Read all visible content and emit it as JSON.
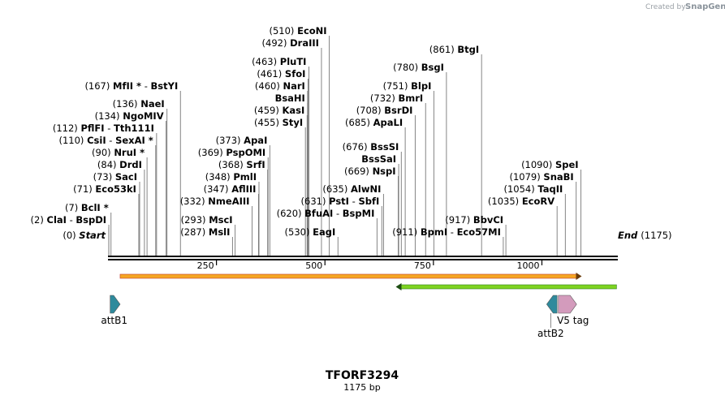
{
  "credit": {
    "prefix": "Created by",
    "brand": "SnapGene"
  },
  "sequence": {
    "name": "TFORF3294",
    "length_label": "1175 bp",
    "length": 1175
  },
  "scale": {
    "ticks": [
      250,
      500,
      750,
      1000
    ]
  },
  "ends": [
    {
      "pos": 0,
      "pos_label": "(0)",
      "name": "Start"
    },
    {
      "pos": 1175,
      "pos_label": "(1175)",
      "name": "End"
    }
  ],
  "sites": [
    {
      "pos": 7,
      "pos_label": "(7)",
      "name": "BclI *"
    },
    {
      "pos": 2,
      "pos_label": "(2)",
      "name": "ClaI",
      "alt": "BspDI"
    },
    {
      "pos": 71,
      "pos_label": "(71)",
      "name": "Eco53kI"
    },
    {
      "pos": 73,
      "pos_label": "(73)",
      "name": "SacI"
    },
    {
      "pos": 84,
      "pos_label": "(84)",
      "name": "DrdI"
    },
    {
      "pos": 90,
      "pos_label": "(90)",
      "name": "NruI *"
    },
    {
      "pos": 110,
      "pos_label": "(110)",
      "name": "CsiI",
      "alt": "SexAI *"
    },
    {
      "pos": 112,
      "pos_label": "(112)",
      "name": "PflFI",
      "alt": "Tth111I"
    },
    {
      "pos": 134,
      "pos_label": "(134)",
      "name": "NgoMIV"
    },
    {
      "pos": 136,
      "pos_label": "(136)",
      "name": "NaeI"
    },
    {
      "pos": 167,
      "pos_label": "(167)",
      "name": "MfII *",
      "alt": "BstYI"
    },
    {
      "pos": 287,
      "pos_label": "(287)",
      "name": "MslI"
    },
    {
      "pos": 293,
      "pos_label": "(293)",
      "name": "MscI"
    },
    {
      "pos": 332,
      "pos_label": "(332)",
      "name": "NmeAIII"
    },
    {
      "pos": 347,
      "pos_label": "(347)",
      "name": "AflIII"
    },
    {
      "pos": 348,
      "pos_label": "(348)",
      "name": "PmlI"
    },
    {
      "pos": 368,
      "pos_label": "(368)",
      "name": "SrfI"
    },
    {
      "pos": 369,
      "pos_label": "(369)",
      "name": "PspOMI"
    },
    {
      "pos": 373,
      "pos_label": "(373)",
      "name": "ApaI"
    },
    {
      "pos": 455,
      "pos_label": "(455)",
      "name": "StyI"
    },
    {
      "pos": 459,
      "pos_label": "(459)",
      "name": "KasI"
    },
    {
      "pos": 460,
      "pos_label": "",
      "name": "BsaHI"
    },
    {
      "pos": 460,
      "pos_label": "(460)",
      "name": "NarI"
    },
    {
      "pos": 461,
      "pos_label": "(461)",
      "name": "SfoI"
    },
    {
      "pos": 463,
      "pos_label": "(463)",
      "name": "PluTI"
    },
    {
      "pos": 492,
      "pos_label": "(492)",
      "name": "DraIII"
    },
    {
      "pos": 510,
      "pos_label": "(510)",
      "name": "EcoNI"
    },
    {
      "pos": 530,
      "pos_label": "(530)",
      "name": "EagI"
    },
    {
      "pos": 620,
      "pos_label": "(620)",
      "name": "BfuAI",
      "alt": "BspMI"
    },
    {
      "pos": 631,
      "pos_label": "(631)",
      "name": "PstI",
      "alt": "SbfI"
    },
    {
      "pos": 635,
      "pos_label": "(635)",
      "name": "AlwNI"
    },
    {
      "pos": 669,
      "pos_label": "(669)",
      "name": "NspI"
    },
    {
      "pos": 670,
      "pos_label": "",
      "name": "BssSaI"
    },
    {
      "pos": 676,
      "pos_label": "(676)",
      "name": "BssSI"
    },
    {
      "pos": 685,
      "pos_label": "(685)",
      "name": "ApaLI"
    },
    {
      "pos": 708,
      "pos_label": "(708)",
      "name": "BsrDI"
    },
    {
      "pos": 732,
      "pos_label": "(732)",
      "name": "BmrI"
    },
    {
      "pos": 751,
      "pos_label": "(751)",
      "name": "BlpI"
    },
    {
      "pos": 780,
      "pos_label": "(780)",
      "name": "BsgI"
    },
    {
      "pos": 861,
      "pos_label": "(861)",
      "name": "BtgI"
    },
    {
      "pos": 911,
      "pos_label": "(911)",
      "name": "BpmI",
      "alt": "Eco57MI"
    },
    {
      "pos": 917,
      "pos_label": "(917)",
      "name": "BbvCI"
    },
    {
      "pos": 1035,
      "pos_label": "(1035)",
      "name": "EcoRV"
    },
    {
      "pos": 1054,
      "pos_label": "(1054)",
      "name": "TaqII"
    },
    {
      "pos": 1079,
      "pos_label": "(1079)",
      "name": "SnaBI"
    },
    {
      "pos": 1090,
      "pos_label": "(1090)",
      "name": "SpeI"
    }
  ],
  "features": [
    {
      "name": "ORF",
      "start": 28,
      "end": 1088,
      "direction": "forward",
      "color": "#f5a623",
      "outline": "#c0392b"
    },
    {
      "name": "ORF2",
      "start": 667,
      "end": 1172,
      "direction": "reverse",
      "color": "#7ed321",
      "outline": "#2e7d1f"
    },
    {
      "name": "attB1",
      "start": 5,
      "end": 28,
      "direction": "forward",
      "color": "#2e8a9c",
      "label": "attB1"
    },
    {
      "name": "attB2",
      "start": 1011,
      "end": 1035,
      "direction": "reverse",
      "color": "#2e8a9c",
      "label": "attB2"
    },
    {
      "name": "V5 tag",
      "start": 1038,
      "end": 1080,
      "direction": "forward",
      "color": "#d39bbc",
      "label": "V5 tag"
    }
  ]
}
